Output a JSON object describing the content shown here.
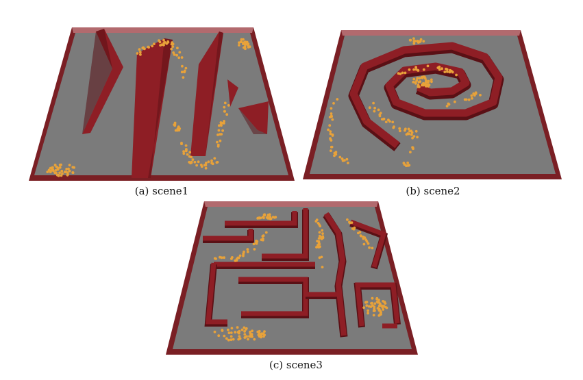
{
  "figure": {
    "captions": {
      "a": "(a) scene1",
      "b": "(b) scene2",
      "c": "(c) scene3"
    }
  },
  "colors": {
    "floor": "#7b7b7b",
    "border": "#7a1f24",
    "border_top": "#b26a6e",
    "wall": "#8e1e25",
    "wall_dark": "#5a1015",
    "agent": "#e8a23a"
  }
}
